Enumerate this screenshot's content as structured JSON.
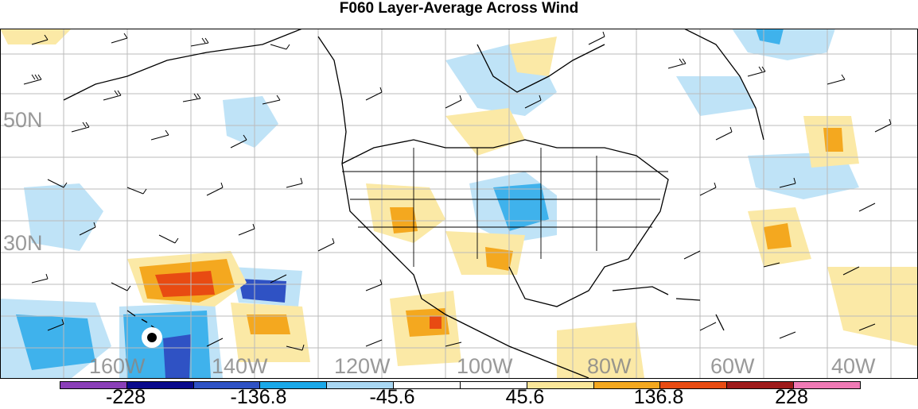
{
  "title": "F060 Layer-Average Across Wind",
  "latitude_labels": [
    "50N",
    "30N"
  ],
  "longitude_labels": [
    "160W",
    "140W",
    "120W",
    "100W",
    "80W",
    "60W",
    "40W"
  ],
  "colorbar": {
    "tick_labels": [
      "-228",
      "-136.8",
      "-45.6",
      "45.6",
      "136.8",
      "228"
    ],
    "colors": [
      "#8a3fb8",
      "#0a0a8c",
      "#2f52c4",
      "#1aa8e8",
      "#a9d8f4",
      "#ffffff",
      "#ffffff",
      "#fbe79a",
      "#f4a81f",
      "#e84b12",
      "#9e1a1a",
      "#f07ab5"
    ]
  },
  "palette": {
    "light_blue": "#bfe3f7",
    "mid_blue": "#3fb2ec",
    "dark_blue": "#2f52c4",
    "light_yellow": "#fbe9a6",
    "orange": "#f4a81f",
    "red": "#e84b12"
  },
  "storm_marker": "hurricane-symbol"
}
